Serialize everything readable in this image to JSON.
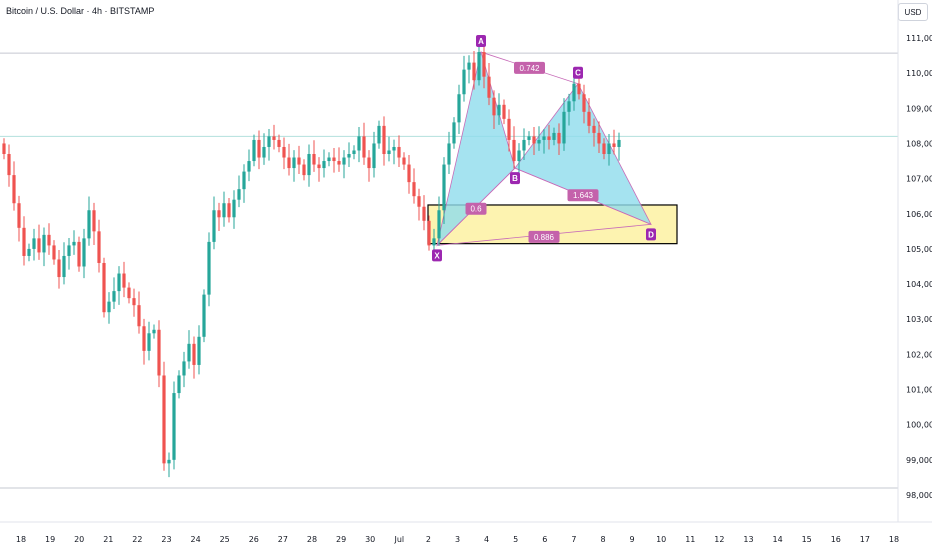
{
  "header": {
    "symbol_title": "Bitcoin / U.S. Dollar · 4h · BITSTAMP",
    "currency": "USD"
  },
  "colors": {
    "up": "#26a69a",
    "down": "#ef5350",
    "pattern_fill": "#8fdcec",
    "pattern_line": "#c76bb8",
    "prz_fill": "#fdf3b0",
    "prz_border": "#000000",
    "point_label": "#9c27b0",
    "ratio_label": "#c462ab",
    "hline_top": "#c5c8d0",
    "hline_mid": "#b2e0dd"
  },
  "chart_data": {
    "type": "candlestick",
    "y_axis": {
      "min": 97800,
      "max": 111400,
      "ticks": [
        "111,000",
        "110,000",
        "109,000",
        "108,000",
        "107,000",
        "106,000",
        "105,000",
        "104,000",
        "103,000",
        "102,000",
        "101,000",
        "100,000",
        "99,000",
        "98,000"
      ]
    },
    "x_axis": {
      "ticks": [
        "18",
        "19",
        "20",
        "21",
        "22",
        "23",
        "24",
        "25",
        "26",
        "27",
        "28",
        "29",
        "30",
        "Jul",
        "2",
        "3",
        "4",
        "5",
        "6",
        "7",
        "8",
        "9",
        "10",
        "11",
        "12",
        "13",
        "14",
        "15",
        "16",
        "17",
        "18"
      ]
    },
    "horizontal_lines": [
      110570,
      108200,
      98200
    ],
    "candle_closes": [
      107700,
      107100,
      106300,
      105600,
      104800,
      105000,
      105300,
      104900,
      105400,
      105100,
      104700,
      104200,
      104800,
      105100,
      105200,
      104500,
      105300,
      106100,
      105500,
      104600,
      103200,
      103500,
      103800,
      104300,
      103900,
      103600,
      103400,
      102800,
      102100,
      102600,
      102700,
      101400,
      98900,
      99000,
      100900,
      101400,
      101800,
      102300,
      101700,
      102500,
      103700,
      105200,
      106100,
      105900,
      106300,
      105900,
      106400,
      106700,
      107200,
      107500,
      108100,
      107600,
      107900,
      108200,
      108100,
      107900,
      107600,
      107300,
      107600,
      107400,
      107100,
      107700,
      107400,
      107300,
      107500,
      107600,
      107500,
      107400,
      107600,
      107700,
      107800,
      108200,
      107600,
      107300,
      108000,
      108500,
      107700,
      107800,
      107900,
      107600,
      107400,
      106900,
      106500,
      106200,
      105800,
      105100,
      105300,
      106100,
      107400,
      108000,
      108600,
      109400,
      110100,
      110300,
      109800,
      110600,
      109900,
      109300,
      108800,
      109100,
      108700,
      108100,
      107500,
      107800,
      108100,
      108200,
      108000,
      108100,
      108200,
      108100,
      108300,
      108000,
      108900,
      109200,
      109700,
      109400,
      108900,
      108500,
      108300,
      108000,
      107700,
      108000,
      107900,
      108100
    ],
    "harmonic_pattern": {
      "points": [
        {
          "label": "X",
          "price": 105100
        },
        {
          "label": "A",
          "price": 110600
        },
        {
          "label": "B",
          "price": 107300
        },
        {
          "label": "C",
          "price": 109700
        },
        {
          "label": "D",
          "price": 105700
        }
      ],
      "ratios": [
        "0.742",
        "1.643",
        "0.886",
        "0.6"
      ]
    },
    "prz_zone": {
      "high": 106250,
      "low": 105150
    }
  }
}
